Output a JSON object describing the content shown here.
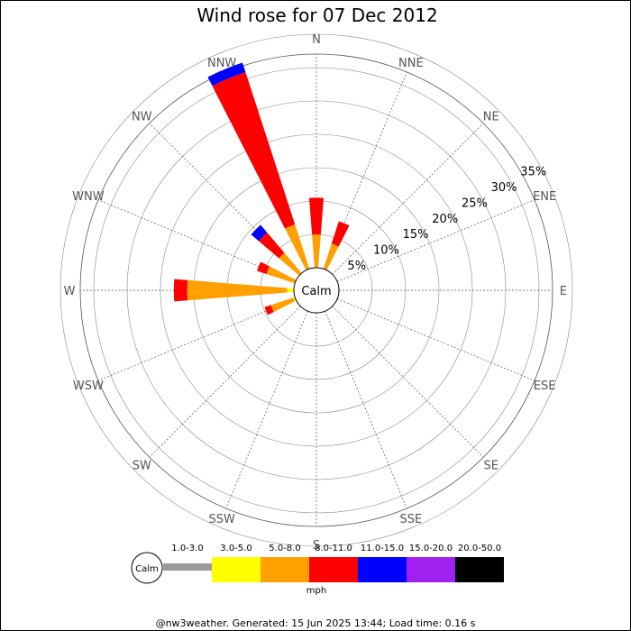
{
  "chart_data": {
    "type": "wind-rose",
    "title": "Wind rose for 07 Dec 2012",
    "directions": [
      "N",
      "NNE",
      "NE",
      "ENE",
      "E",
      "ESE",
      "SE",
      "SSE",
      "S",
      "SSW",
      "SW",
      "WSW",
      "W",
      "WNW",
      "NW",
      "NNW"
    ],
    "rings": [
      5,
      10,
      15,
      20,
      25,
      30,
      35
    ],
    "ring_labels": [
      "5%",
      "10%",
      "15%",
      "20%",
      "25%",
      "30%",
      "35%"
    ],
    "calm_label": "Calm",
    "speed_bins": [
      {
        "label": "1.0-3.0",
        "color": "#999999"
      },
      {
        "label": "3.0-5.0",
        "color": "#ffff00"
      },
      {
        "label": "5.0-8.0",
        "color": "#ffa000"
      },
      {
        "label": "8.0-11.0",
        "color": "#ff0000"
      },
      {
        "label": "11.0-15.0",
        "color": "#0000ff"
      },
      {
        "label": "15.0-20.0",
        "color": "#a020f0"
      },
      {
        "label": "20.0-50.0",
        "color": "#000000"
      }
    ],
    "unit": "mph",
    "values": [
      [
        0,
        0,
        5.0,
        5.5,
        0,
        0,
        0
      ],
      [
        0,
        0,
        4.0,
        3.5,
        0,
        0,
        0
      ],
      [
        0,
        0,
        0,
        0,
        0,
        0,
        0
      ],
      [
        0,
        0,
        0,
        0,
        0,
        0,
        0
      ],
      [
        0,
        0,
        0,
        0,
        0,
        0,
        0
      ],
      [
        0,
        0,
        0,
        0,
        0,
        0,
        0
      ],
      [
        0,
        0,
        0,
        0,
        0,
        0,
        0
      ],
      [
        0,
        0,
        0,
        0,
        0,
        0,
        0
      ],
      [
        0,
        0,
        0,
        0,
        0,
        0,
        0
      ],
      [
        0,
        0,
        0,
        0,
        0,
        0,
        0
      ],
      [
        0,
        0,
        0,
        0,
        0,
        0,
        0
      ],
      [
        0,
        0.3,
        3.5,
        1.0,
        0,
        0,
        0
      ],
      [
        0,
        1.0,
        15.0,
        2.0,
        0,
        0,
        0
      ],
      [
        0,
        0,
        4.5,
        1.5,
        0,
        0,
        0
      ],
      [
        0,
        0,
        4.0,
        4.0,
        1.5,
        0,
        0
      ],
      [
        0,
        0,
        7.0,
        24.0,
        1.5,
        0,
        0
      ]
    ]
  },
  "footer": "@nw3weather. Generated: 15 Jun 2025 13:44; Load time: 0.16 s"
}
